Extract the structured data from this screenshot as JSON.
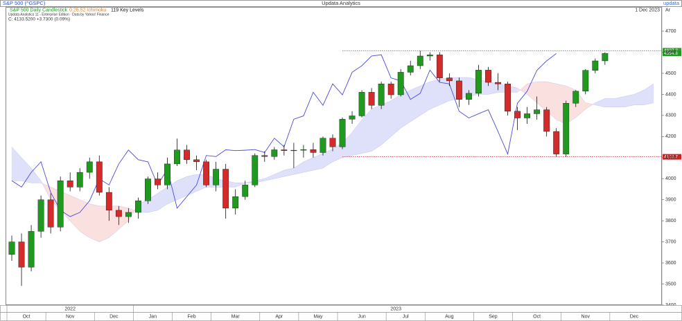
{
  "header": {
    "symbol": "S&P 500 (^GSPC)",
    "app": "Updata Analytics",
    "logo": "updata",
    "date": "1 Dec 2023",
    "axis_tag": "Ar",
    "study": "S&P 500 Daily Candlestick",
    "indicator": "0.26.52 Ichimoku",
    "levels": "119 Key Levels",
    "edition": "Updata Analytics 11 - Enterprise Edition · Data by Yahoo! Finance",
    "quote": "C: 4133.5200 +3.7300 (0.09%)"
  },
  "chart_data": {
    "type": "candlestick",
    "open": [
      3640,
      3700,
      3580,
      3750,
      3900,
      3770,
      3990,
      3960,
      4030,
      4080,
      3935,
      3850,
      3820,
      3840,
      3895,
      3999,
      3970,
      4070,
      4136,
      4090,
      4080,
      3970,
      4045,
      3860,
      3915,
      3970,
      4110,
      4105,
      4137,
      4133,
      4135,
      4138,
      4124,
      4192,
      4151,
      4282,
      4298,
      4410,
      4348,
      4450,
      4398,
      4505,
      4536,
      4582,
      4588,
      4478,
      4464,
      4376,
      4405,
      4515,
      4457,
      4450,
      4320,
      4288,
      4308,
      4327,
      4224,
      4117,
      4358,
      4415,
      4514,
      4559
    ],
    "high": [
      3730,
      3740,
      3780,
      3920,
      3930,
      4010,
      4030,
      4050,
      4100,
      4110,
      3960,
      3870,
      3860,
      3910,
      4010,
      4030,
      4100,
      4190,
      4160,
      4110,
      4090,
      4080,
      4070,
      3950,
      3990,
      4120,
      4130,
      4150,
      4160,
      4170,
      4160,
      4170,
      4200,
      4210,
      4290,
      4320,
      4420,
      4430,
      4460,
      4460,
      4520,
      4560,
      4607,
      4600,
      4600,
      4500,
      4480,
      4420,
      4540,
      4530,
      4500,
      4460,
      4340,
      4340,
      4390,
      4340,
      4240,
      4370,
      4420,
      4520,
      4570,
      4600
    ],
    "low": [
      3610,
      3491,
      3560,
      3720,
      3740,
      3750,
      3940,
      3940,
      4000,
      3920,
      3800,
      3780,
      3790,
      3810,
      3880,
      3950,
      3950,
      4060,
      4070,
      4040,
      3960,
      3940,
      3810,
      3830,
      3900,
      3960,
      4080,
      4090,
      4110,
      4050,
      4100,
      4100,
      4110,
      4130,
      4140,
      4260,
      4290,
      4330,
      4330,
      4380,
      4390,
      4490,
      4520,
      4560,
      4460,
      4440,
      4340,
      4350,
      4390,
      4440,
      4420,
      4300,
      4230,
      4260,
      4280,
      4200,
      4104,
      4104,
      4340,
      4400,
      4500,
      4540
    ],
    "close": [
      3700,
      3580,
      3750,
      3900,
      3770,
      3990,
      3960,
      4030,
      4080,
      3935,
      3850,
      3820,
      3840,
      3895,
      3999,
      3970,
      4070,
      4136,
      4090,
      4080,
      3970,
      4045,
      3860,
      3915,
      3970,
      4110,
      4105,
      4137,
      4133,
      4135,
      4138,
      4124,
      4192,
      4151,
      4282,
      4298,
      4410,
      4348,
      4450,
      4398,
      4505,
      4536,
      4582,
      4588,
      4478,
      4464,
      4376,
      4405,
      4515,
      4457,
      4450,
      4320,
      4288,
      4308,
      4327,
      4224,
      4117,
      4358,
      4415,
      4514,
      4559,
      4594.6
    ],
    "up_color": "#1f9a1f",
    "down_color": "#d42a2a",
    "span_a": [
      4150,
      4100,
      4050,
      3990,
      3900,
      3850,
      3800,
      3750,
      3720,
      3700,
      3720,
      3760,
      3800,
      3880,
      3900,
      3930,
      3960,
      3990,
      4010,
      4020,
      4020,
      4000,
      3990,
      3980,
      3980,
      3990,
      4000,
      4020,
      4040,
      4050,
      4080,
      4100,
      4120,
      4140,
      4170,
      4220,
      4280,
      4330,
      4350,
      4370,
      4400,
      4420,
      4440,
      4460,
      4470,
      4480,
      4480,
      4480,
      4470,
      4460,
      4450,
      4440,
      4430,
      4400,
      4360,
      4320,
      4280,
      4260,
      4290,
      4330,
      4360,
      4380,
      4380,
      4390,
      4400,
      4420,
      4450
    ],
    "span_b": [
      3990,
      3990,
      3980,
      3980,
      3960,
      3940,
      3920,
      3900,
      3880,
      3870,
      3870,
      3870,
      3860,
      3840,
      3840,
      3850,
      3880,
      3900,
      3920,
      3940,
      3960,
      3960,
      3960,
      3960,
      3980,
      3980,
      3990,
      4000,
      4010,
      4020,
      4030,
      4040,
      4050,
      4080,
      4100,
      4110,
      4120,
      4130,
      4160,
      4200,
      4240,
      4270,
      4300,
      4330,
      4350,
      4370,
      4380,
      4390,
      4400,
      4400,
      4410,
      4410,
      4410,
      4450,
      4460,
      4460,
      4450,
      4440,
      4420,
      4360,
      4350,
      4340,
      4340,
      4340,
      4350,
      4350,
      4360
    ],
    "cloud_up_color": "#dfe1fa",
    "cloud_down_color": "#fbe0e0",
    "lagging": [
      3990,
      3960,
      4030,
      4080,
      3935,
      3850,
      3820,
      3840,
      3895,
      3999,
      3970,
      4070,
      4136,
      4090,
      4080,
      3970,
      4045,
      3860,
      3915,
      3970,
      4110,
      4105,
      4137,
      4133,
      4135,
      4138,
      4124,
      4192,
      4151,
      4282,
      4298,
      4410,
      4348,
      4450,
      4398,
      4505,
      4536,
      4582,
      4588,
      4478,
      4464,
      4376,
      4405,
      4515,
      4457,
      4450,
      4320,
      4288,
      4308,
      4327,
      4224,
      4117,
      4358,
      4415,
      4514,
      4559,
      4594
    ],
    "lagging_color": "#4a4ae0",
    "key_levels": [
      {
        "value": 4607.2,
        "label": "4607.2",
        "color": "#2e9e2e",
        "from": 34
      },
      {
        "value": 4103.7,
        "label": "4103.7",
        "color": "#d42020",
        "from": 34
      }
    ],
    "xlim": [
      0,
      67
    ],
    "xticks": [
      {
        "value": 0,
        "label": "Oct"
      },
      {
        "value": 4,
        "label": "Nov"
      },
      {
        "value": 9,
        "label": "Dec"
      },
      {
        "value": 13,
        "label": "Jan"
      },
      {
        "value": 17,
        "label": "Feb"
      },
      {
        "value": 21,
        "label": "Mar"
      },
      {
        "value": 26,
        "label": "Apr"
      },
      {
        "value": 30,
        "label": "May"
      },
      {
        "value": 34,
        "label": "Jun"
      },
      {
        "value": 39,
        "label": "Jul"
      },
      {
        "value": 43,
        "label": "Aug"
      },
      {
        "value": 48,
        "label": "Sep"
      },
      {
        "value": 52,
        "label": "Oct"
      },
      {
        "value": 57,
        "label": "Nov"
      },
      {
        "value": 62,
        "label": "Dec"
      }
    ],
    "years": [
      {
        "value": 0,
        "label": "2022"
      },
      {
        "value": 13,
        "label": "2023"
      }
    ],
    "ylim": [
      3400,
      4815
    ],
    "yticks": [
      3400,
      3500,
      3600,
      3700,
      3800,
      3900,
      4000,
      4100,
      4200,
      4300,
      4400,
      4500,
      4600,
      4700
    ],
    "grid": false
  }
}
